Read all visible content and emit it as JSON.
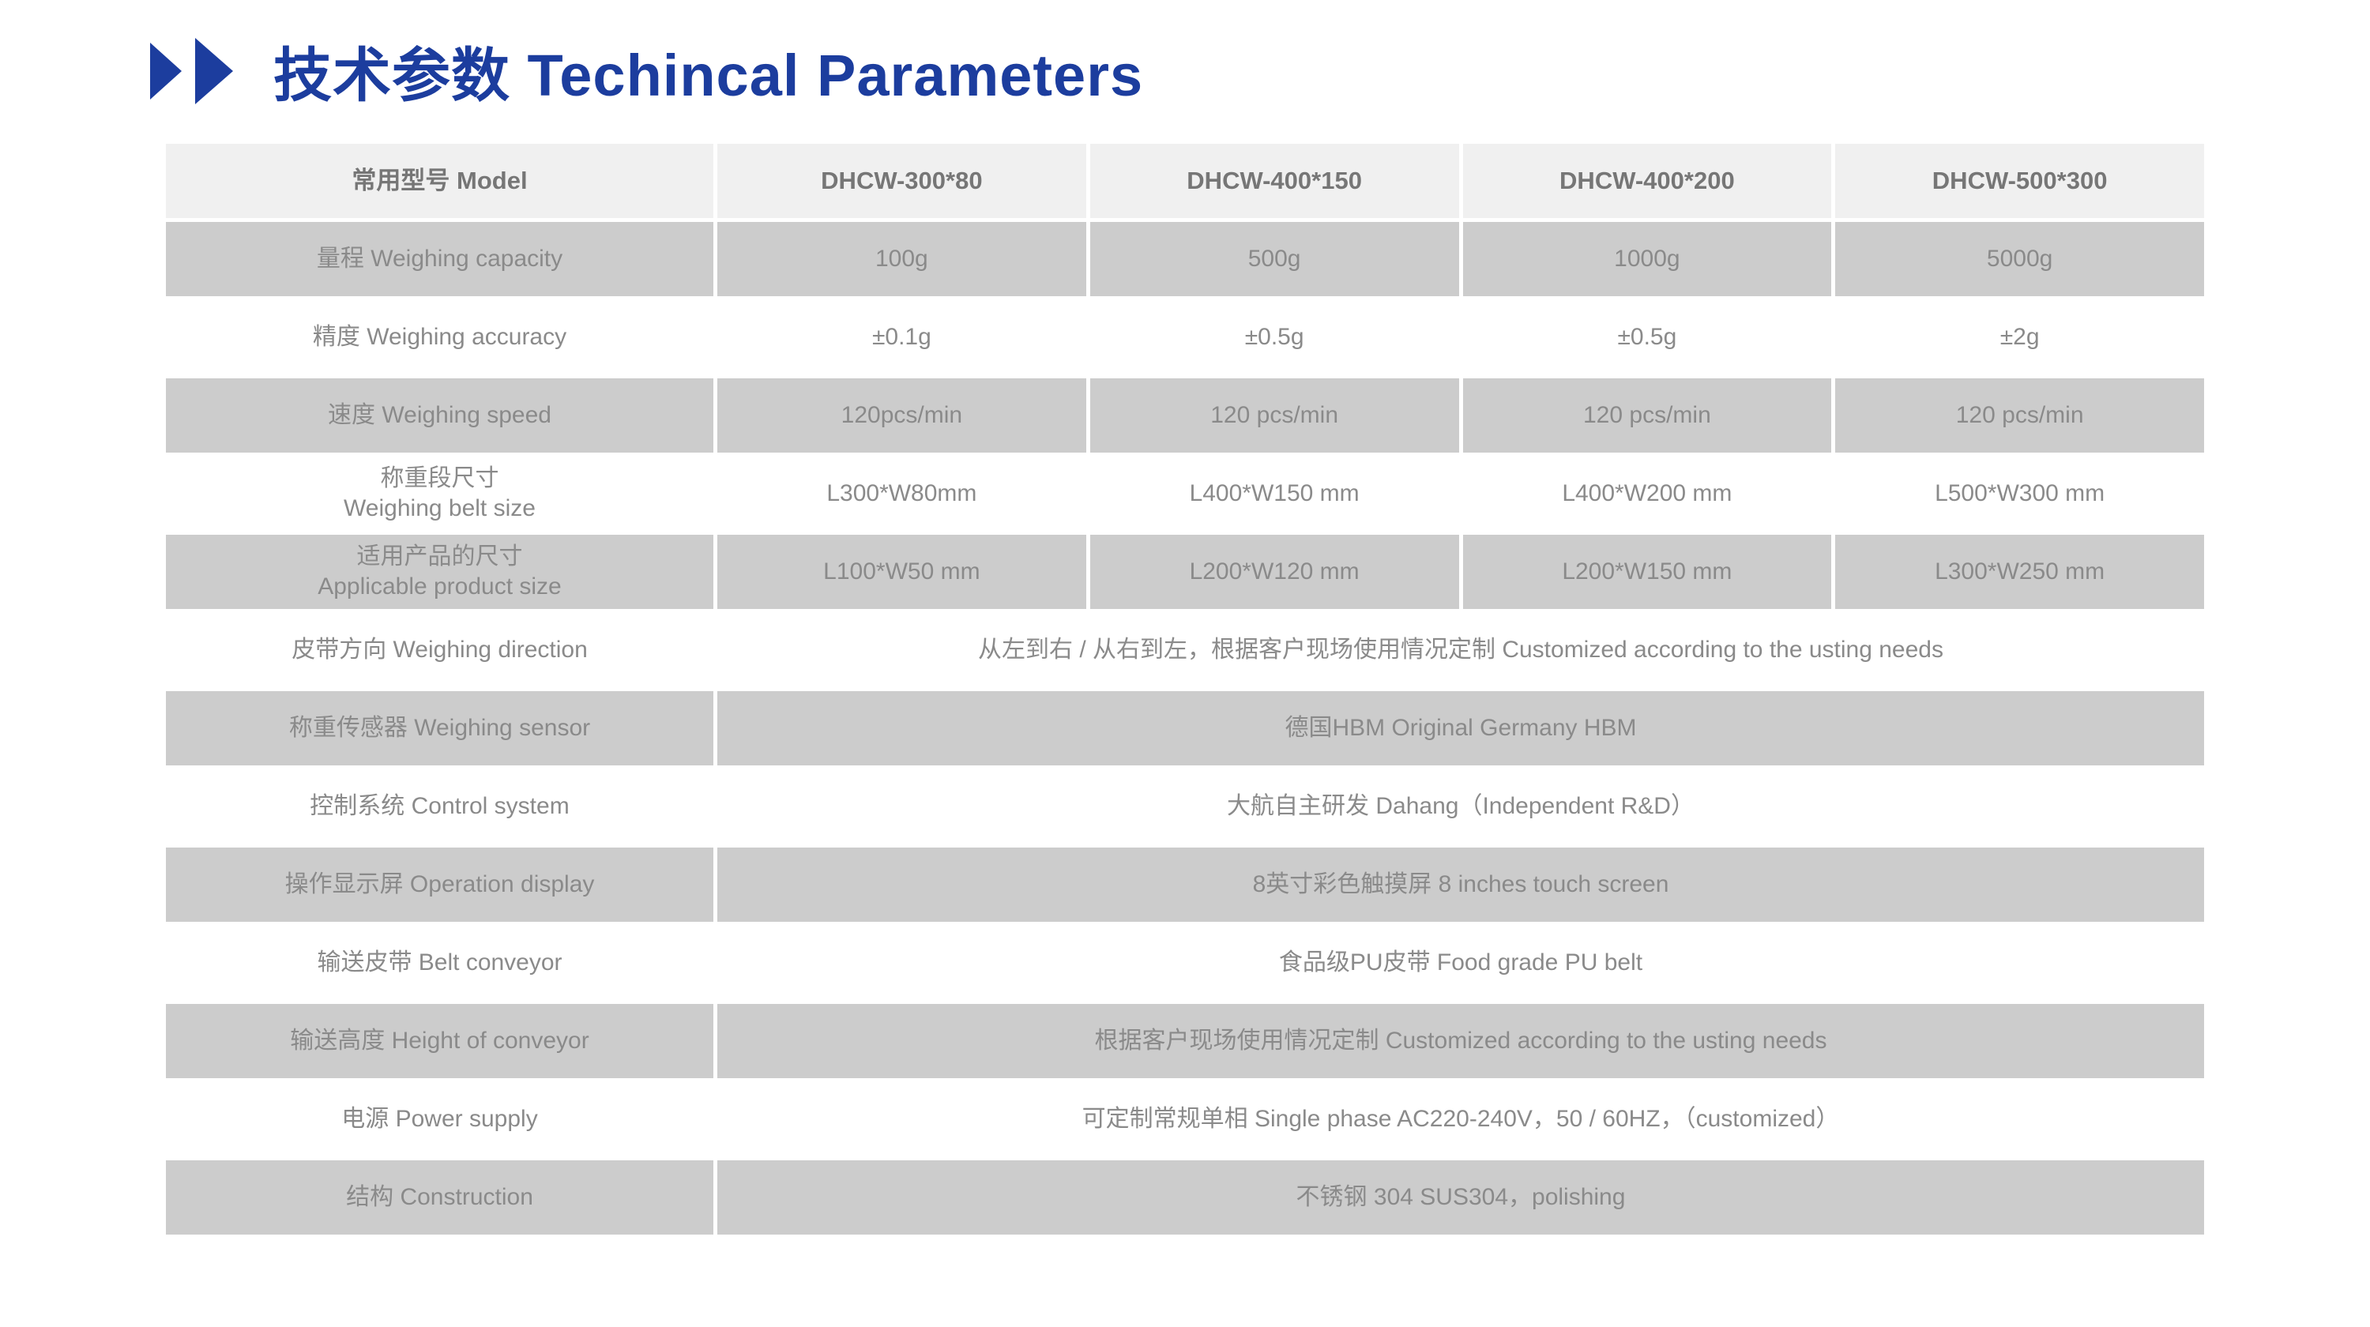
{
  "title": {
    "text": "技术参数 Techincal Parameters"
  },
  "icons": {
    "arrow_small": "right-triangle-icon",
    "arrow_large": "right-triangle-icon"
  },
  "colors": {
    "title_blue": "#1c3d9e",
    "header_row_bg": "#f0f0f0",
    "gray_row_bg": "#cccccc",
    "white_row_bg": "#ffffff",
    "table_text": "#8a8a8a",
    "header_text": "#767676"
  },
  "table": {
    "header": {
      "label": "常用型号 Model",
      "models": [
        "DHCW-300*80",
        "DHCW-400*150",
        "DHCW-400*200",
        "DHCW-500*300"
      ]
    },
    "rows": [
      {
        "name": "weighing-capacity",
        "shade": "gray",
        "label_lines": [
          "量程  Weighing capacity"
        ],
        "values": [
          "100g",
          "500g",
          "1000g",
          "5000g"
        ]
      },
      {
        "name": "weighing-accuracy",
        "shade": "white",
        "label_lines": [
          "精度  Weighing accuracy"
        ],
        "values": [
          "±0.1g",
          "±0.5g",
          "±0.5g",
          "±2g"
        ]
      },
      {
        "name": "weighing-speed",
        "shade": "gray",
        "label_lines": [
          "速度 Weighing speed"
        ],
        "values": [
          "120pcs/min",
          "120 pcs/min",
          "120 pcs/min",
          "120 pcs/min"
        ]
      },
      {
        "name": "weighing-belt-size",
        "shade": "white",
        "label_lines": [
          "称重段尺寸",
          "Weighing belt size"
        ],
        "values": [
          "L300*W80mm",
          "L400*W150 mm",
          "L400*W200 mm",
          "L500*W300 mm"
        ]
      },
      {
        "name": "applicable-product-size",
        "shade": "gray",
        "label_lines": [
          "适用产品的尺寸",
          "Applicable product size"
        ],
        "values": [
          "L100*W50 mm",
          "L200*W120 mm",
          "L200*W150 mm",
          "L300*W250 mm"
        ]
      },
      {
        "name": "weighing-direction",
        "shade": "white",
        "label_lines": [
          "皮带方向 Weighing direction"
        ],
        "merged_value": "从左到右 / 从右到左，根据客户现场使用情况定制 Customized according to the usting needs"
      },
      {
        "name": "weighing-sensor",
        "shade": "gray",
        "label_lines": [
          "称重传感器 Weighing sensor"
        ],
        "merged_value": "德国HBM Original Germany HBM"
      },
      {
        "name": "control-system",
        "shade": "white",
        "label_lines": [
          "控制系统 Control system"
        ],
        "merged_value": "大航自主研发 Dahang（Independent R&D）"
      },
      {
        "name": "operation-display",
        "shade": "gray",
        "label_lines": [
          "操作显示屏 Operation display"
        ],
        "merged_value": "8英寸彩色触摸屏 8 inches touch screen"
      },
      {
        "name": "belt-conveyor",
        "shade": "white",
        "label_lines": [
          "输送皮带 Belt conveyor"
        ],
        "merged_value": "食品级PU皮带 Food grade PU belt"
      },
      {
        "name": "height-of-conveyor",
        "shade": "gray",
        "label_lines": [
          "输送高度 Height of conveyor"
        ],
        "merged_value": "根据客户现场使用情况定制 Customized according to the usting needs"
      },
      {
        "name": "power-supply",
        "shade": "white",
        "label_lines": [
          "电源 Power supply"
        ],
        "merged_value": "可定制常规单相 Single phase AC220-240V，50 / 60HZ，（customized）"
      },
      {
        "name": "construction",
        "shade": "gray",
        "label_lines": [
          "结构 Construction"
        ],
        "merged_value": "不锈钢 304 SUS304，polishing"
      }
    ]
  }
}
